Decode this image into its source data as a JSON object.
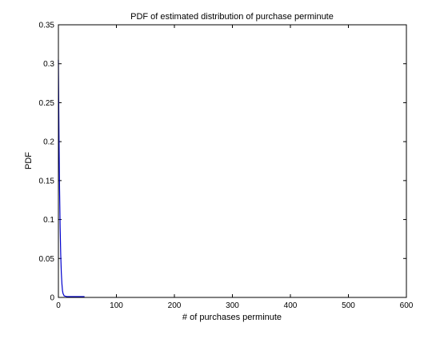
{
  "chart_data": {
    "type": "line",
    "title": "PDF of estimated distribution of purchase perminute",
    "xlabel": "# of purchases perminute",
    "ylabel": "PDF",
    "xlim": [
      0,
      600
    ],
    "ylim": [
      0,
      0.35
    ],
    "x_ticks": [
      0,
      100,
      200,
      300,
      400,
      500,
      600
    ],
    "y_ticks": [
      0,
      0.05,
      0.1,
      0.15,
      0.2,
      0.25,
      0.3,
      0.35
    ],
    "x_tick_labels": [
      "0",
      "100",
      "200",
      "300",
      "400",
      "500",
      "600"
    ],
    "y_tick_labels": [
      "0",
      "0.05",
      "0.1",
      "0.15",
      "0.2",
      "0.25",
      "0.3",
      "0.35"
    ],
    "grid": false,
    "series": [
      {
        "color": "#0000cc",
        "x": [
          0,
          1,
          2,
          3,
          4,
          5,
          6,
          7,
          8,
          10,
          15,
          20,
          30,
          40,
          45
        ],
        "y": [
          0.305,
          0.21,
          0.14,
          0.09,
          0.055,
          0.032,
          0.018,
          0.009,
          0.005,
          0.002,
          0.001,
          0.001,
          0.001,
          0.001,
          0.001
        ]
      }
    ]
  }
}
